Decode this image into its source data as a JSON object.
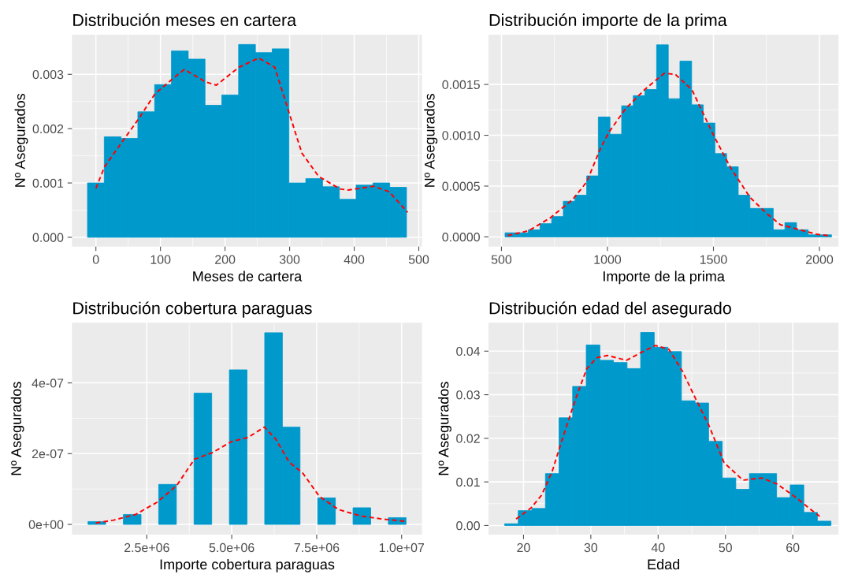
{
  "chart_data": [
    {
      "type": "histogram",
      "title": "Distribución meses en cartera",
      "xlabel": "Meses de cartera",
      "ylabel": "Nº Asegurados",
      "grid": true,
      "xlim": [
        -37,
        505
      ],
      "ylim": [
        -0.00017,
        0.00373
      ],
      "xticks": [
        0,
        100,
        200,
        300,
        400,
        500
      ],
      "yticks": [
        {
          "value": 0,
          "label": "0.000"
        },
        0.001,
        0.002,
        0.003
      ],
      "series": [
        {
          "color": "#0099cc",
          "bins": [
            -13,
            13,
            39,
            65,
            91,
            117,
            143,
            169,
            195,
            221,
            247,
            273,
            299,
            325,
            351,
            377,
            403,
            429,
            455,
            481
          ],
          "values": [
            0.001,
            0.00185,
            0.00182,
            0.00231,
            0.00281,
            0.00343,
            0.00328,
            0.00243,
            0.00262,
            0.00355,
            0.0034,
            0.00347,
            0.001,
            0.00108,
            0.00093,
            0.0007,
            0.00096,
            0.001,
            0.00092
          ]
        },
        {
          "type": "line",
          "color": "#ff0000",
          "line_style": "dashed",
          "x": [
            0,
            13.5,
            39,
            65,
            91.5,
            118,
            137,
            170,
            186.5,
            221.5,
            252,
            277,
            300,
            319,
            345,
            378,
            391,
            430,
            454,
            482.7
          ],
          "values": [
            0.0009,
            0.0013,
            0.00173,
            0.00216,
            0.00264,
            0.00291,
            0.00309,
            0.00286,
            0.0028,
            0.00313,
            0.0033,
            0.00313,
            0.00226,
            0.00155,
            0.00112,
            0.00089,
            0.00087,
            0.00094,
            0.00084,
            0.00046
          ]
        }
      ]
    },
    {
      "type": "histogram",
      "title": "Distribución importe de la prima",
      "xlabel": "Importe de la prima",
      "ylabel": "Nº Asegurados",
      "grid": true,
      "xlim": [
        439,
        2090
      ],
      "ylim": [
        -9.5e-05,
        0.00199
      ],
      "xticks": [
        500,
        1000,
        1500,
        2000
      ],
      "yticks": [
        {
          "value": 0,
          "label": "0.0000"
        },
        0.0005,
        {
          "value": 0.001,
          "label": "0.0010"
        },
        0.0015
      ],
      "series": [
        {
          "color": "#0099cc",
          "bins": [
            517,
            572,
            627,
            682,
            737,
            792,
            847,
            902,
            957,
            1012,
            1067,
            1122,
            1177,
            1232,
            1287,
            1342,
            1397,
            1452,
            1507,
            1562,
            1617,
            1672,
            1727,
            1782,
            1837,
            1892,
            1947,
            2002,
            2057
          ],
          "values": [
            4e-05,
            4e-05,
            7e-05,
            0.00013,
            0.0002,
            0.00035,
            0.00041,
            0.0006,
            0.00118,
            0.00101,
            0.00129,
            0.00139,
            0.00145,
            0.00189,
            0.00136,
            0.00173,
            0.0013,
            0.00112,
            0.00082,
            0.00069,
            0.00041,
            0.00028,
            0.00028,
            7e-05,
            0.00014,
            7e-05,
            2e-05,
            2e-05
          ]
        },
        {
          "type": "line",
          "color": "#ff0000",
          "line_style": "dashed",
          "x": [
            530,
            628,
            732,
            837,
            902,
            967,
            1007,
            1085,
            1176,
            1268,
            1320,
            1398,
            1503,
            1581,
            1672,
            1751,
            1816,
            1907,
            1986,
            2051
          ],
          "values": [
            1.3e-05,
            6e-05,
            0.00019,
            0.00037,
            0.00054,
            0.00087,
            0.00103,
            0.00126,
            0.00145,
            0.00161,
            0.0016,
            0.00145,
            0.00099,
            0.00068,
            0.00039,
            0.00023,
            0.00012,
            7e-05,
            2.6e-05,
            1e-05
          ]
        }
      ]
    },
    {
      "type": "histogram",
      "title": "Distribución cobertura paraguas",
      "xlabel": "Importe cobertura paraguas",
      "ylabel": "Nº Asegurados",
      "grid": true,
      "xlim": [
        298000,
        10600000
      ],
      "ylim": [
        -2.9e-08,
        5.7e-07
      ],
      "xticks": [
        {
          "value": 2500000,
          "label": "2.5e+06"
        },
        {
          "value": 5000000,
          "label": "5.0e+06"
        },
        {
          "value": 7500000,
          "label": "7.5e+06"
        },
        {
          "value": 10000000,
          "label": "1.0e+07"
        }
      ],
      "yticks": [
        {
          "value": 0,
          "label": "0e+00"
        },
        {
          "value": 2e-07,
          "label": "2e-07"
        },
        {
          "value": 4e-07,
          "label": "4e-07"
        }
      ],
      "series": [
        {
          "color": "#0099cc",
          "bins": [
            770000,
            1290000,
            1810000,
            2330000,
            2850000,
            3370000,
            3890000,
            4410000,
            4930000,
            5450000,
            5970000,
            6490000,
            7010000,
            7530000,
            8050000,
            8570000,
            9090000,
            9610000,
            10130000
          ],
          "values": [
            8e-09,
            0,
            2.8e-08,
            0,
            1.13e-07,
            0,
            3.71e-07,
            0,
            4.37e-07,
            0,
            5.42e-07,
            2.75e-07,
            0,
            7.5e-08,
            0,
            4.7e-08,
            0,
            1.9e-08
          ]
        },
        {
          "type": "line",
          "color": "#ff0000",
          "line_style": "dashed",
          "x": [
            1000000,
            1520000,
            2170000,
            2810000,
            3380000,
            3900000,
            4430000,
            4990000,
            5480000,
            5960000,
            6290000,
            6690000,
            7090000,
            7580000,
            8140000,
            8790000,
            9430000,
            10080000
          ],
          "values": [
            4e-09,
            1.2e-08,
            2.8e-08,
            6.3e-08,
            1.1e-07,
            1.84e-07,
            2.03e-07,
            2.34e-07,
            2.46e-07,
            2.75e-07,
            2.42e-07,
            1.76e-07,
            1.45e-07,
            7.9e-08,
            4.2e-08,
            2.4e-08,
            1.5e-08,
            9e-09
          ]
        }
      ]
    },
    {
      "type": "histogram",
      "title": "Distribución edad del asegurado",
      "xlabel": "Edad",
      "ylabel": "Nº Asegurados",
      "grid": true,
      "xlim": [
        14.8,
        66.8
      ],
      "ylim": [
        -0.0021,
        0.0465
      ],
      "xticks": [
        20,
        30,
        40,
        50,
        60
      ],
      "yticks": [
        {
          "value": 0,
          "label": "0.00"
        },
        0.01,
        0.02,
        0.03,
        0.04
      ],
      "series": [
        {
          "color": "#0099cc",
          "bins": [
            17.2,
            19.22,
            21.24,
            23.26,
            25.28,
            27.3,
            29.32,
            31.34,
            33.36,
            35.38,
            37.4,
            39.42,
            41.44,
            43.46,
            45.48,
            47.5,
            49.52,
            51.54,
            53.56,
            55.58,
            57.6,
            59.62,
            61.64,
            63.66,
            65.68
          ],
          "values": [
            0.0004,
            0.0034,
            0.0039,
            0.0119,
            0.0247,
            0.0319,
            0.0414,
            0.0379,
            0.0374,
            0.036,
            0.0443,
            0.0409,
            0.0399,
            0.0286,
            0.0281,
            0.0193,
            0.0109,
            0.0083,
            0.0119,
            0.0119,
            0.0064,
            0.0093,
            0.003,
            0.001
          ]
        },
        {
          "type": "line",
          "color": "#ff0000",
          "line_style": "dashed",
          "x": [
            18.9,
            21.1,
            22.7,
            24.3,
            25.8,
            27.8,
            29.4,
            30.9,
            32.5,
            35.3,
            37.6,
            39.6,
            41.6,
            43.6,
            45.5,
            47.5,
            49.8,
            52.6,
            55.4,
            57.7,
            60.5,
            62.4,
            64.0
          ],
          "values": [
            0.0015,
            0.004,
            0.007,
            0.0126,
            0.02,
            0.0293,
            0.036,
            0.0385,
            0.039,
            0.0379,
            0.0398,
            0.0413,
            0.0404,
            0.0354,
            0.0293,
            0.0231,
            0.0144,
            0.0104,
            0.0109,
            0.0095,
            0.0064,
            0.004,
            0.0021
          ]
        }
      ]
    }
  ]
}
